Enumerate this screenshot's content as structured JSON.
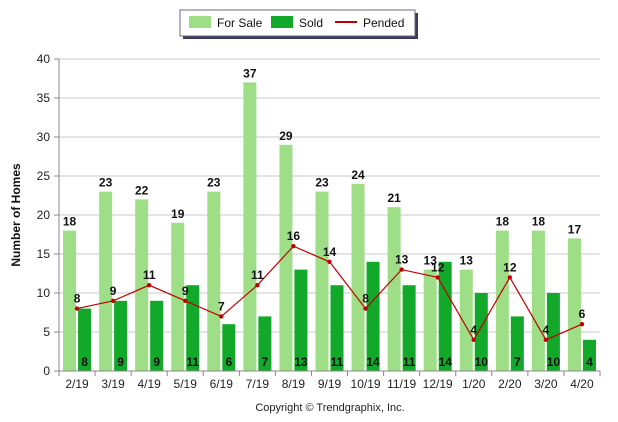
{
  "chart_data": {
    "type": "bar",
    "categories": [
      "2/19",
      "3/19",
      "4/19",
      "5/19",
      "6/19",
      "7/19",
      "8/19",
      "9/19",
      "10/19",
      "11/19",
      "12/19",
      "1/20",
      "2/20",
      "3/20",
      "4/20"
    ],
    "series": [
      {
        "name": "For Sale",
        "type": "bar",
        "color": "#9ede86",
        "values": [
          18,
          23,
          22,
          19,
          23,
          37,
          29,
          23,
          24,
          21,
          13,
          13,
          18,
          18,
          17
        ]
      },
      {
        "name": "Sold",
        "type": "bar",
        "color": "#12a82a",
        "values": [
          8,
          9,
          9,
          11,
          6,
          7,
          13,
          11,
          14,
          11,
          14,
          10,
          7,
          10,
          4
        ]
      },
      {
        "name": "Pended",
        "type": "line",
        "color": "#c00000",
        "values": [
          8,
          9,
          11,
          9,
          7,
          11,
          16,
          14,
          8,
          13,
          12,
          4,
          12,
          4,
          6
        ]
      }
    ],
    "ylabel": "Number of Homes",
    "xlabel": "",
    "ylim": [
      0,
      40
    ],
    "yticks": [
      0,
      5,
      10,
      15,
      20,
      25,
      30,
      35,
      40
    ],
    "grid": true,
    "legend_position": "top-center",
    "copyright": "Copyright © Trendgraphix, Inc."
  }
}
